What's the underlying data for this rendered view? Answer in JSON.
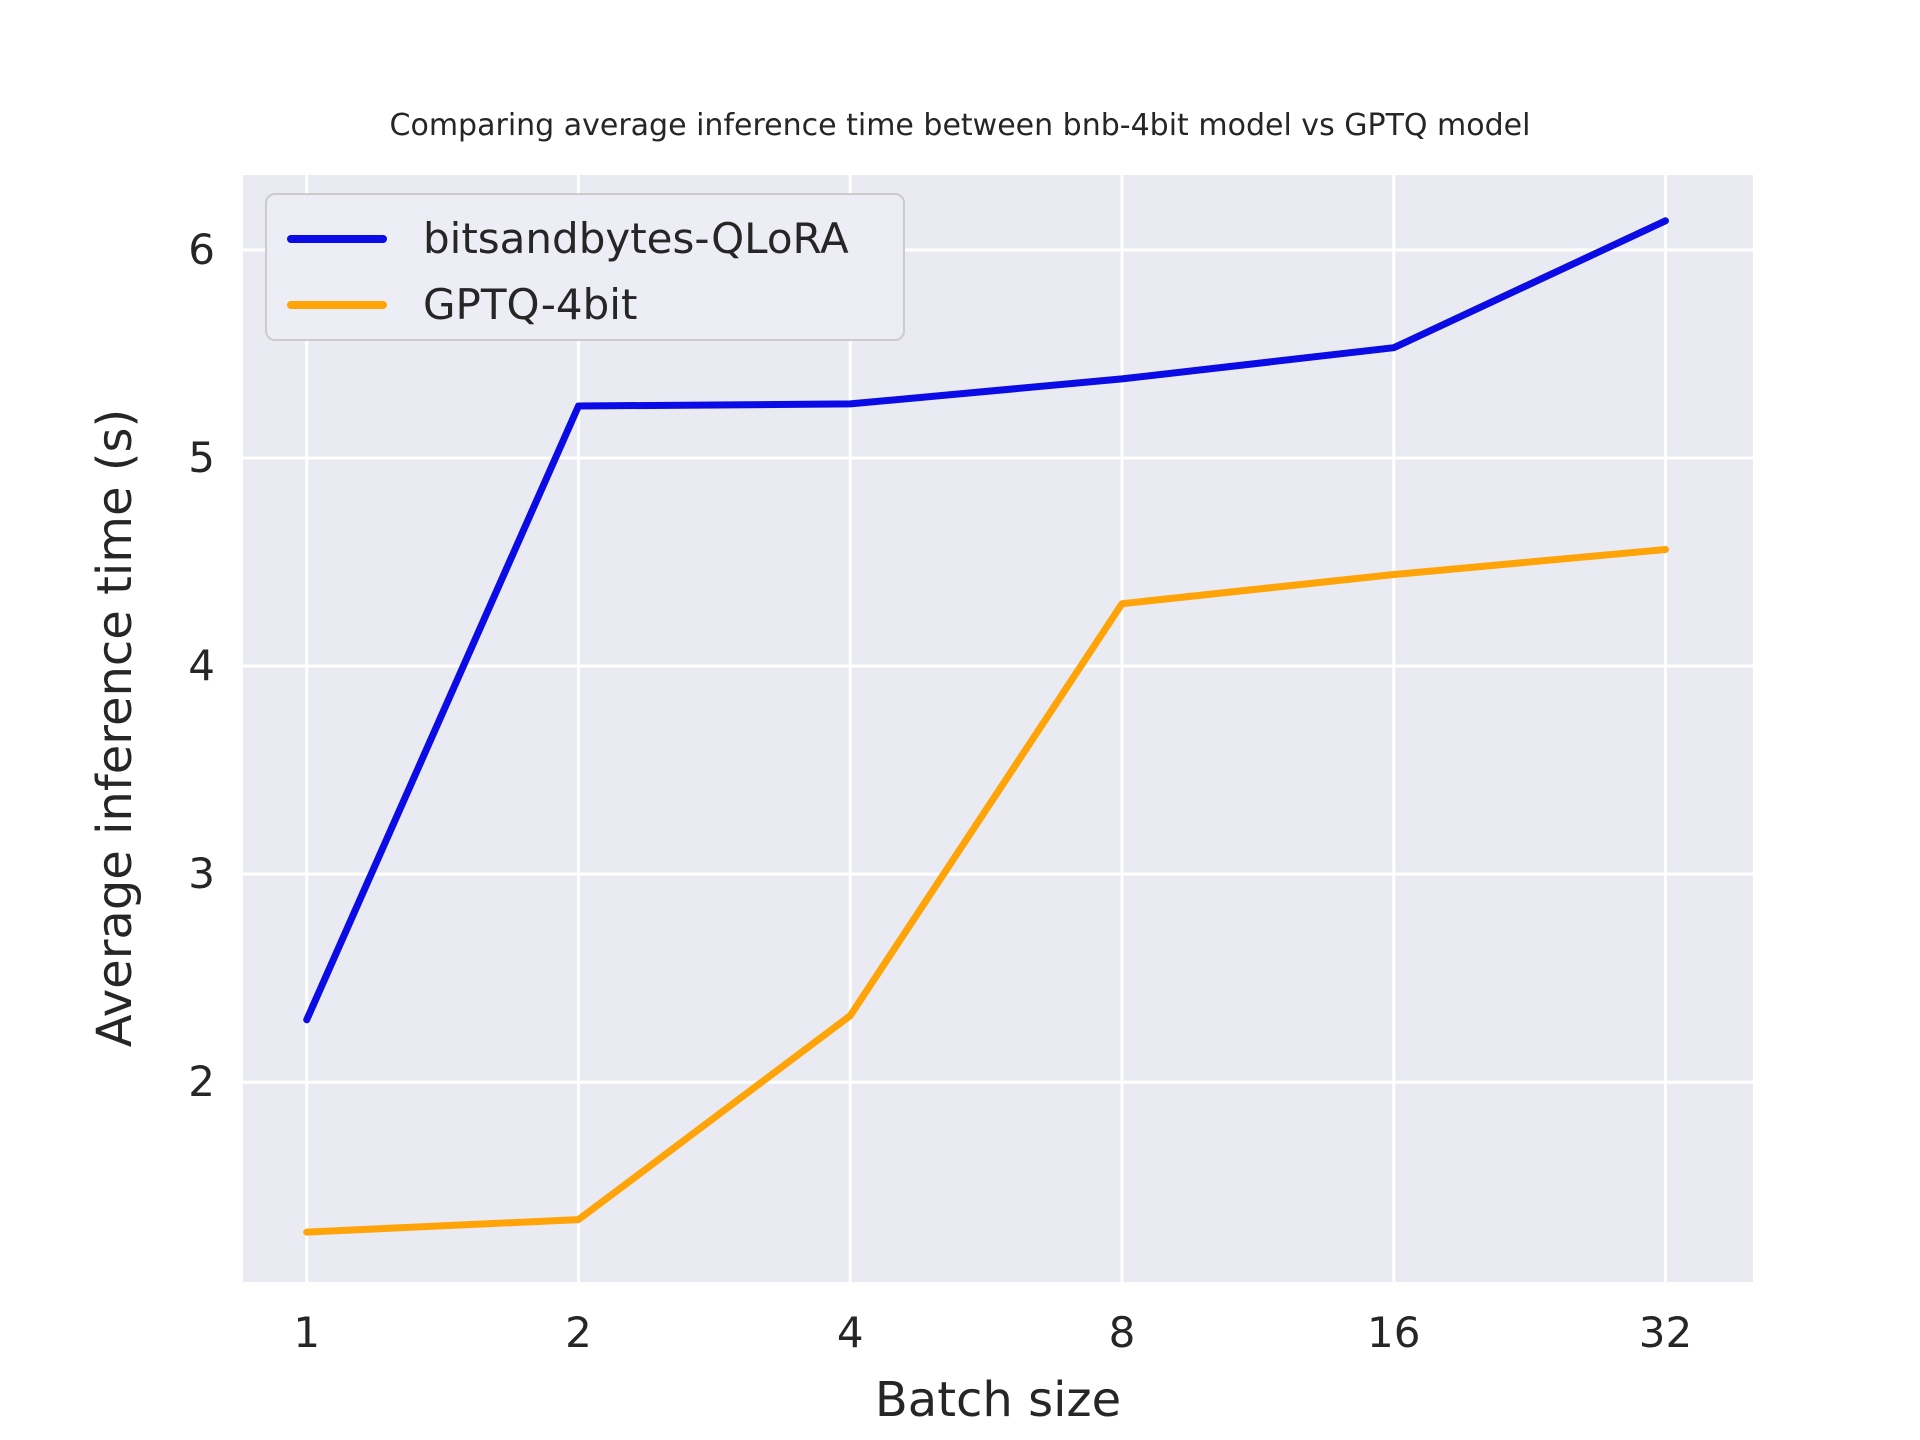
{
  "chart_data": {
    "type": "line",
    "title": "Comparing average inference time between bnb-4bit model vs GPTQ model",
    "xlabel": "Batch size",
    "ylabel": "Average inference time (s)",
    "x": [
      1,
      2,
      4,
      8,
      16,
      32
    ],
    "xscale": "log2",
    "xlim": [
      0.85,
      40
    ],
    "ylim": [
      1.04,
      6.36
    ],
    "xticks": [
      "1",
      "2",
      "4",
      "8",
      "16",
      "32"
    ],
    "yticks": [
      "2",
      "3",
      "4",
      "5",
      "6"
    ],
    "grid": true,
    "grid_axis": "both",
    "legend_position": "upper-left",
    "series": [
      {
        "name": "bitsandbytes-QLoRA",
        "color": "#0b0be6",
        "values": [
          2.3,
          5.25,
          5.26,
          5.38,
          5.53,
          6.14
        ]
      },
      {
        "name": "GPTQ-4bit",
        "color": "#ffa408",
        "values": [
          1.28,
          1.34,
          2.32,
          4.3,
          4.44,
          4.56
        ]
      }
    ],
    "colors": {
      "axes_background": "#eaeaf2",
      "grid": "#ffffff",
      "text": "#262626",
      "legend_background": "#ededf5",
      "legend_border": "#cccccc"
    }
  }
}
